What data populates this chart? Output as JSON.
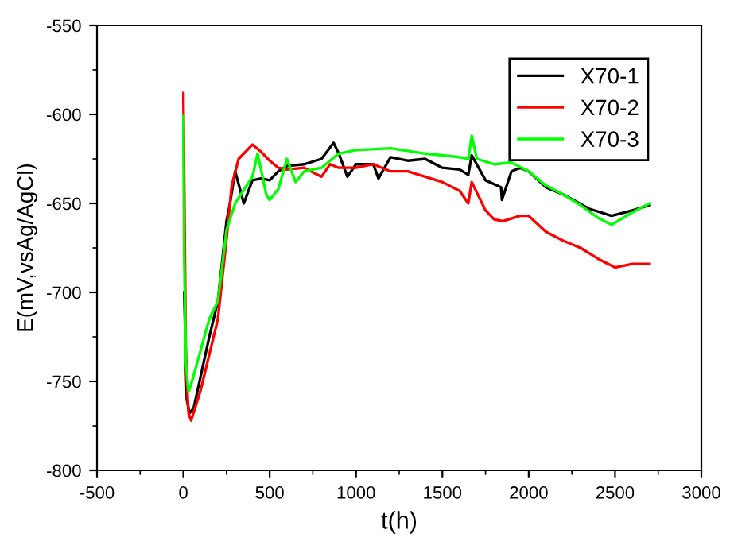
{
  "chart_data": {
    "type": "line",
    "xlabel": "t(h)",
    "ylabel": "E(mV,vsAg/AgCl)",
    "xlim": [
      -500,
      3000
    ],
    "xticks": [
      -500,
      0,
      500,
      1000,
      1500,
      2000,
      2500,
      3000
    ],
    "ylim": [
      -800,
      -550
    ],
    "yticks": [
      -800,
      -750,
      -700,
      -650,
      -600,
      -550
    ],
    "grid": false,
    "legend": "top right",
    "series": [
      {
        "name": "X70-1",
        "color": "#000000",
        "x": [
          5,
          20,
          35,
          60,
          150,
          200,
          250,
          270,
          300,
          350,
          400,
          450,
          500,
          550,
          600,
          700,
          800,
          870,
          900,
          950,
          1000,
          1100,
          1130,
          1200,
          1300,
          1400,
          1500,
          1600,
          1650,
          1670,
          1750,
          1840,
          1845,
          1900,
          1950,
          2000,
          2100,
          2200,
          2350,
          2480,
          2600,
          2700
        ],
        "values": [
          -700,
          -760,
          -768,
          -765,
          -725,
          -705,
          -660,
          -650,
          -632,
          -650,
          -637,
          -636,
          -637,
          -632,
          -629,
          -628,
          -625,
          -616,
          -622,
          -635,
          -628,
          -628,
          -636,
          -624,
          -626,
          -625,
          -630,
          -631,
          -634,
          -623,
          -637,
          -641,
          -648,
          -632,
          -630,
          -632,
          -641,
          -645,
          -653,
          -657,
          -654,
          -651
        ]
      },
      {
        "name": "X70-2",
        "color": "#ff0000",
        "x": [
          0,
          15,
          30,
          45,
          100,
          200,
          250,
          280,
          320,
          400,
          450,
          500,
          550,
          600,
          700,
          800,
          850,
          900,
          1000,
          1100,
          1200,
          1300,
          1400,
          1500,
          1600,
          1650,
          1670,
          1750,
          1800,
          1850,
          1950,
          2000,
          2100,
          2200,
          2300,
          2400,
          2500,
          2600,
          2700
        ],
        "values": [
          -588,
          -740,
          -768,
          -772,
          -755,
          -715,
          -670,
          -640,
          -625,
          -617,
          -621,
          -626,
          -630,
          -631,
          -630,
          -635,
          -628,
          -630,
          -630,
          -628,
          -632,
          -632,
          -635,
          -638,
          -643,
          -650,
          -638,
          -654,
          -659,
          -660,
          -657,
          -657,
          -666,
          -671,
          -675,
          -681,
          -686,
          -684,
          -684
        ]
      },
      {
        "name": "X70-3",
        "color": "#00ff00",
        "x": [
          0,
          5,
          15,
          30,
          50,
          150,
          200,
          250,
          300,
          400,
          430,
          480,
          500,
          550,
          600,
          650,
          700,
          800,
          900,
          1000,
          1200,
          1400,
          1600,
          1650,
          1670,
          1700,
          1800,
          1900,
          2000,
          2100,
          2200,
          2300,
          2400,
          2480,
          2600,
          2700
        ],
        "values": [
          -601,
          -680,
          -740,
          -756,
          -750,
          -715,
          -705,
          -665,
          -650,
          -635,
          -622,
          -645,
          -648,
          -642,
          -625,
          -638,
          -632,
          -630,
          -622,
          -620,
          -619,
          -622,
          -624,
          -625,
          -612,
          -625,
          -628,
          -627,
          -632,
          -640,
          -645,
          -651,
          -658,
          -662,
          -655,
          -650
        ]
      }
    ]
  }
}
